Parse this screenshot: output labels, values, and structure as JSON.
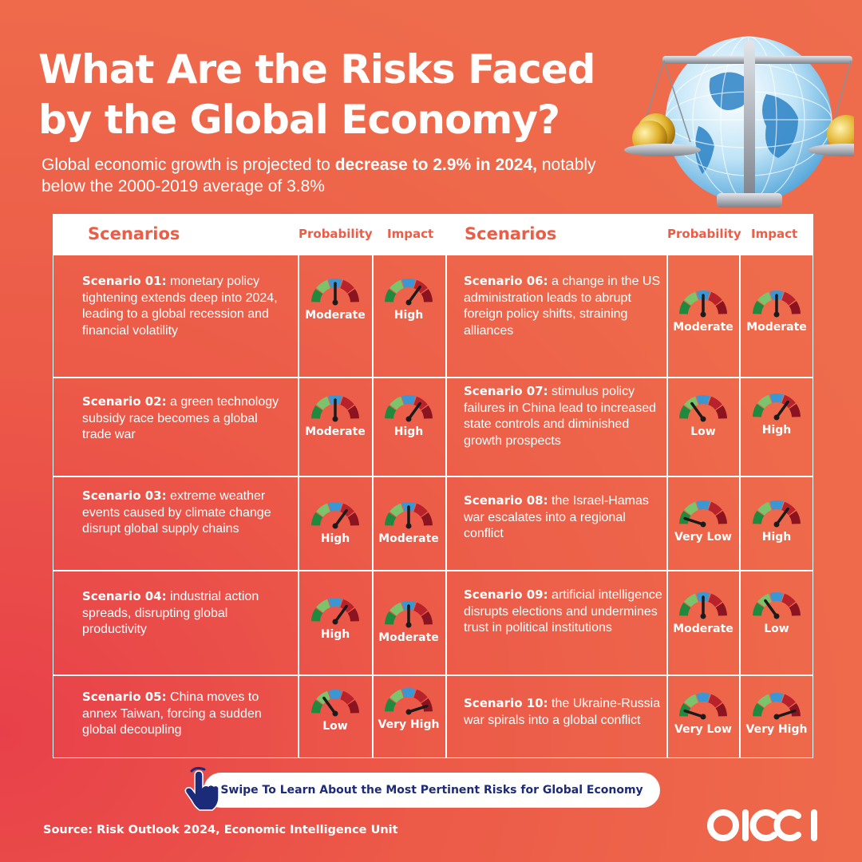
{
  "header": {
    "title": "What Are the Risks Faced by the Global Economy?",
    "subtitle_pre": "Global economic growth is projected to ",
    "subtitle_bold": "decrease to 2.9% in 2024,",
    "subtitle_post": " notably below the 2000-2019 average of 3.8%"
  },
  "table": {
    "col_scenarios": "Scenarios",
    "col_probability": "Probability",
    "col_impact": "Impact",
    "rows": [
      {
        "left": {
          "label": "Scenario 01:",
          "text": " monetary policy tightening extends deep into 2024, leading to a global recession and financial volatility",
          "probability": "Moderate",
          "impact": "High"
        },
        "right": {
          "label": "Scenario 06:",
          "text": " a change in the US administration leads to abrupt foreign policy shifts, straining alliances",
          "probability": "Moderate",
          "impact": "Moderate"
        }
      },
      {
        "left": {
          "label": "Scenario 02:",
          "text": " a green technology subsidy race becomes a global trade war",
          "probability": "Moderate",
          "impact": "High"
        },
        "right": {
          "label": "Scenario 07:",
          "text": " stimulus policy failures in China lead to increased state controls and diminished growth prospects",
          "probability": "Low",
          "impact": "High"
        }
      },
      {
        "left": {
          "label": "Scenario 03:",
          "text": " extreme weather events caused by climate change disrupt global supply chains",
          "probability": "High",
          "impact": "Moderate"
        },
        "right": {
          "label": "Scenario 08:",
          "text": " the Israel-Hamas war escalates into a regional conflict",
          "probability": "Very Low",
          "impact": "High"
        }
      },
      {
        "left": {
          "label": "Scenario 04:",
          "text": " industrial action spreads, disrupting global productivity",
          "probability": "High",
          "impact": "Moderate"
        },
        "right": {
          "label": "Scenario 09:",
          "text": " artificial intelligence disrupts elections and undermines trust in political institutions",
          "probability": "Moderate",
          "impact": "Low"
        }
      },
      {
        "left": {
          "label": "Scenario 05:",
          "text": " China moves to annex Taiwan, forcing a sudden global decoupling",
          "probability": "Low",
          "impact": "Very High"
        },
        "right": {
          "label": "Scenario 10:",
          "text": " the Ukraine-Russia war spirals into a global conflict",
          "probability": "Very Low",
          "impact": "Very High"
        }
      }
    ]
  },
  "gauge_levels": {
    "Very Low": 0.1,
    "Low": 0.3,
    "Moderate": 0.5,
    "High": 0.7,
    "Very High": 0.9
  },
  "colors": {
    "background": "#ee6a4b",
    "gauge_green": "#1f8a3e",
    "gauge_lightgreen": "#7cc46b",
    "gauge_blue": "#3b97d3",
    "gauge_red": "#b8222b",
    "gauge_darkred": "#8c1420",
    "needle": "#1b1b1b"
  },
  "icons": [
    "globe-scale-icon",
    "pointing-hand-icon",
    "olcci-logo"
  ],
  "cta": {
    "label": "Swipe To Learn About the Most Pertinent Risks for Global Economy"
  },
  "footer": {
    "source": "Source: Risk Outlook 2024, Economic Intelligence Unit",
    "logo_text": "OICCI"
  }
}
